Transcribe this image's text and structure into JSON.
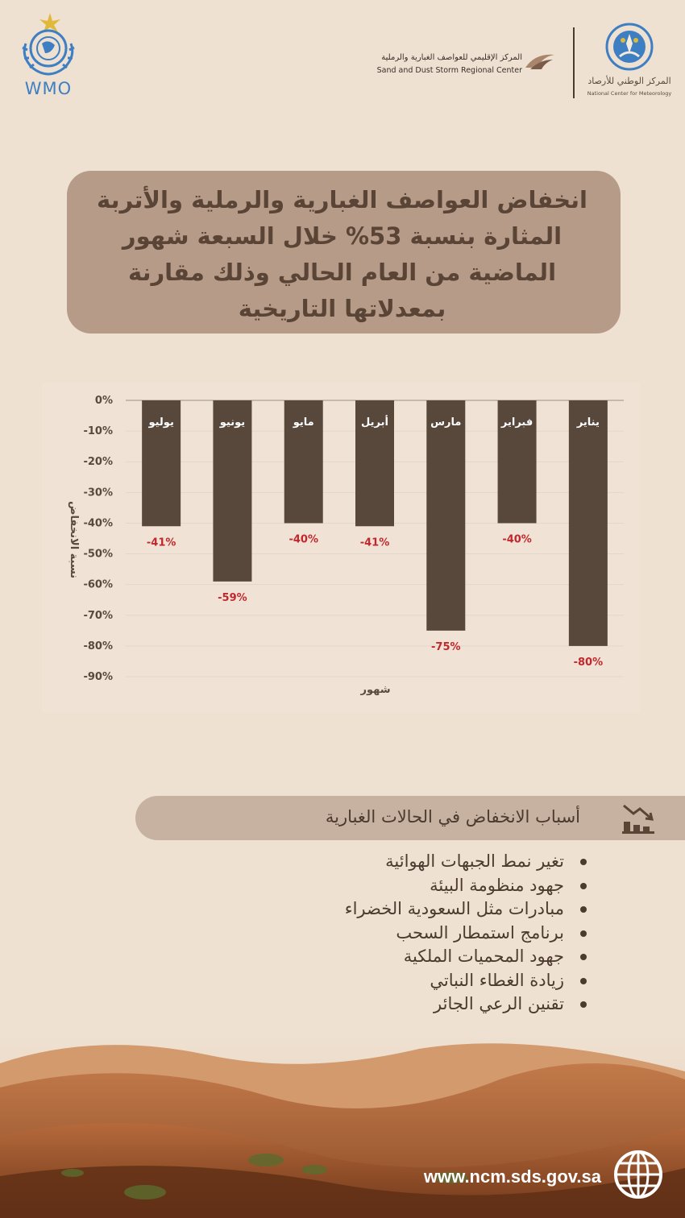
{
  "header": {
    "wmo_label": "WMO",
    "sds_name_ar": "المركز الإقليمي للعواصف الغبارية والرملية",
    "sds_name_en": "Sand and Dust Storm Regional Center",
    "ncm_name_ar": "المركز الوطني للأرصاد",
    "ncm_name_en": "National Center for Meteorology"
  },
  "headline": "انخفاض العواصف الغبارية والرملية والأتربة المثارة بنسبة 53% خلال السبعة شهور الماضية من العام الحالي وذلك مقارنة بمعدلاتها التاريخية",
  "chart_data": {
    "type": "bar",
    "categories": [
      "يناير",
      "فبراير",
      "مارس",
      "أبريل",
      "مايو",
      "يونيو",
      "يوليو"
    ],
    "values": [
      -80,
      -40,
      -75,
      -41,
      -40,
      -59,
      -41
    ],
    "value_labels": [
      "-80%",
      "-40%",
      "-75%",
      "-41%",
      "-40%",
      "-59%",
      "-41%"
    ],
    "xlabel": "شهور",
    "ylabel": "نسبة الانخفاض",
    "ylim": [
      -90,
      0
    ],
    "yticks": [
      "0%",
      "-10%",
      "-20%",
      "-30%",
      "-40%",
      "-50%",
      "-60%",
      "-70%",
      "-80%",
      "-90%"
    ],
    "category_order": "right-to-left",
    "grid": true,
    "bar_color": "#58473b",
    "label_color": "#c0282d"
  },
  "causes": {
    "title": "أسباب الانخفاض في الحالات الغبارية",
    "items": [
      "تغير نمط الجبهات الهوائية",
      "جهود منظومة البيئة",
      "مبادرات مثل السعودية الخضراء",
      "برنامج استمطار السحب",
      "جهود المحميات الملكية",
      "زيادة الغطاء النباتي",
      "تقنين الرعي الجائر"
    ]
  },
  "footer": {
    "url": "www.ncm.sds.gov.sa"
  },
  "icons": [
    "wmo-logo-icon",
    "sds-logo-icon",
    "ncm-logo-icon",
    "declining-chart-icon",
    "globe-icon"
  ]
}
